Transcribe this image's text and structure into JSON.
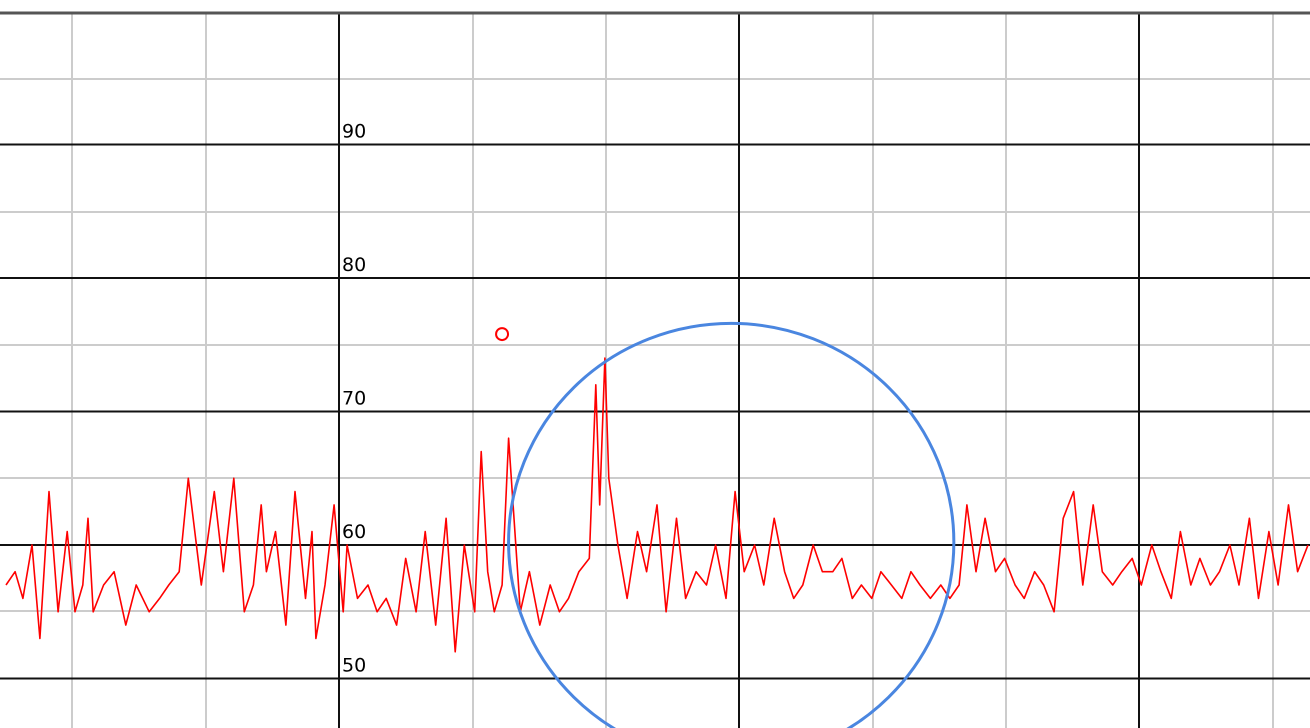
{
  "chart_data": {
    "type": "line",
    "title": "",
    "xlabel": "",
    "ylabel": "",
    "ylim": [
      45,
      97
    ],
    "y_ticks": [
      50,
      60,
      70,
      80,
      90
    ],
    "x_range": [
      0,
      1000
    ],
    "grid": true,
    "series": [
      {
        "color": "#ff0000",
        "x": [
          0,
          7,
          13,
          20,
          26,
          33,
          40,
          47,
          53,
          59,
          63,
          67,
          75,
          83,
          92,
          100,
          110,
          118,
          125,
          133,
          140,
          150,
          160,
          167,
          175,
          183,
          190,
          196,
          200,
          207,
          215,
          222,
          230,
          235,
          238,
          245,
          252,
          259,
          262,
          270,
          278,
          285,
          292,
          300,
          307,
          315,
          322,
          330,
          338,
          345,
          352,
          360,
          365,
          370,
          375,
          381,
          386,
          395,
          402,
          410,
          418,
          425,
          432,
          440,
          448,
          453,
          456,
          460,
          463,
          470,
          477,
          485,
          492,
          500,
          507,
          515,
          522,
          530,
          538,
          545,
          553,
          560,
          567,
          575,
          582,
          590,
          598,
          605,
          612,
          620,
          627,
          635,
          642,
          650,
          657,
          665,
          672,
          680,
          688,
          695,
          702,
          710,
          718,
          725,
          732,
          738,
          745,
          752,
          760,
          767,
          775,
          782,
          790,
          797,
          805,
          812,
          820,
          827,
          835,
          842,
          850,
          857,
          865,
          872,
          880,
          887,
          895,
          902,
          910,
          917,
          925,
          932,
          940,
          947,
          955,
          962,
          970,
          977,
          985,
          992,
          1000
        ],
        "values": [
          57,
          58,
          56,
          60,
          53,
          64,
          55,
          61,
          55,
          57,
          62,
          55,
          57,
          58,
          54,
          57,
          55,
          56,
          57,
          58,
          65,
          57,
          64,
          58,
          65,
          55,
          57,
          63,
          58,
          61,
          54,
          64,
          56,
          61,
          53,
          57,
          63,
          55,
          60,
          56,
          57,
          55,
          56,
          54,
          59,
          55,
          61,
          54,
          62,
          52,
          60,
          55,
          67,
          58,
          55,
          57,
          68,
          55,
          58,
          54,
          57,
          55,
          56,
          58,
          59,
          72,
          63,
          74,
          65,
          60,
          56,
          61,
          58,
          63,
          55,
          62,
          56,
          58,
          57,
          60,
          56,
          64,
          58,
          60,
          57,
          62,
          58,
          56,
          57,
          60,
          58,
          58,
          59,
          56,
          57,
          56,
          58,
          57,
          56,
          58,
          57,
          56,
          57,
          56,
          57,
          63,
          58,
          62,
          58,
          59,
          57,
          56,
          58,
          57,
          55,
          62,
          64,
          57,
          63,
          58,
          57,
          58,
          59,
          57,
          60,
          58,
          56,
          61,
          57,
          59,
          57,
          58,
          60,
          57,
          62,
          56,
          61,
          57,
          63,
          58,
          60
        ]
      }
    ],
    "annotations": [
      {
        "type": "marker",
        "shape": "circle",
        "x": 381,
        "y": 75.8,
        "color": "#ff0000"
      },
      {
        "type": "highlight-circle",
        "x": 557,
        "y": 60.2,
        "rx_x_units": 171,
        "r_y_units": 16.4,
        "color": "#4a86e0"
      }
    ]
  }
}
